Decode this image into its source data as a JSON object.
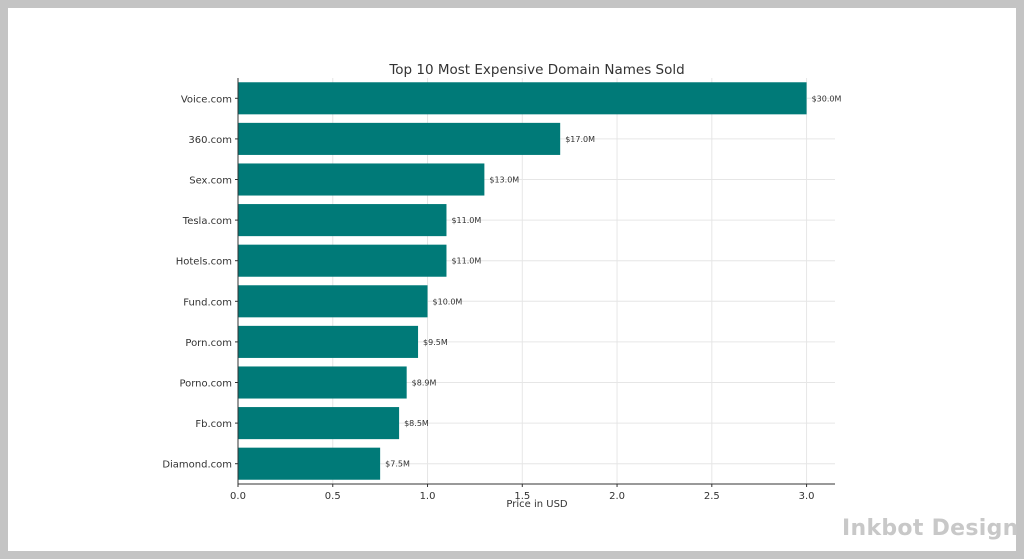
{
  "chart_data": {
    "type": "bar",
    "orientation": "horizontal",
    "title": "Top 10 Most Expensive Domain Names Sold",
    "xlabel": "Price in USD",
    "ylabel": "",
    "xlim": [
      0,
      3.15
    ],
    "xticks": [
      0.0,
      0.5,
      1.0,
      1.5,
      2.0,
      2.5,
      3.0
    ],
    "xtick_labels": [
      "0.0",
      "0.5",
      "1.0",
      "1.5",
      "2.0",
      "2.5",
      "3.0"
    ],
    "grid": true,
    "bar_color": "#007a78",
    "categories": [
      "Voice.com",
      "360.com",
      "Sex.com",
      "Tesla.com",
      "Hotels.com",
      "Fund.com",
      "Porn.com",
      "Porno.com",
      "Fb.com",
      "Diamond.com"
    ],
    "values": [
      3.0,
      1.7,
      1.3,
      1.1,
      1.1,
      1.0,
      0.95,
      0.89,
      0.85,
      0.75
    ],
    "data_labels": [
      "$30.0M",
      "$17.0M",
      "$13.0M",
      "$11.0M",
      "$11.0M",
      "$10.0M",
      "$9.5M",
      "$8.9M",
      "$8.5M",
      "$7.5M"
    ]
  },
  "watermark": "Inkbot Design",
  "colors": {
    "border": "#c4c4c4",
    "background": "#ffffff",
    "axis": "#333333",
    "grid": "#e6e6e6"
  }
}
